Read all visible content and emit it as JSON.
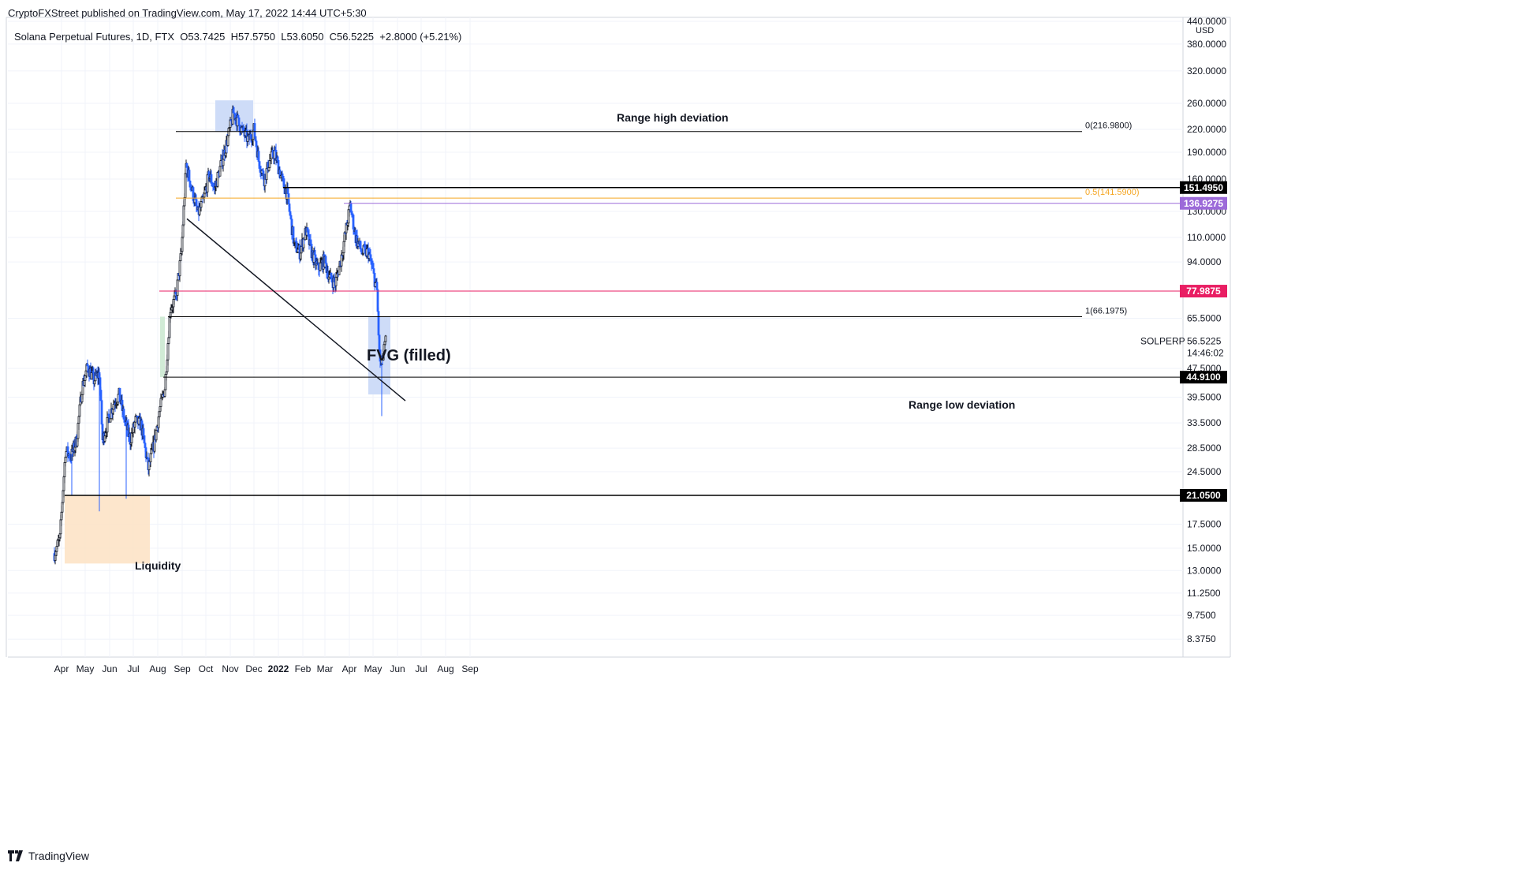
{
  "header": {
    "published": "CryptoFXStreet published on TradingView.com, May 17, 2022 14:44 UTC+5:30",
    "symbol": "Solana Perpetual Futures, 1D, FTX",
    "ohlc": "O53.7425  H57.5750  L53.6050  C56.5225  +2.8000 (+5.21%)"
  },
  "footer": {
    "brand": "TradingView",
    "logo_icon": "tradingview-logo-icon"
  },
  "chart_data": {
    "type": "candlestick",
    "scale": "log",
    "currency": "USD",
    "grid": true,
    "x_ticks": [
      "Apr",
      "May",
      "Jun",
      "Jul",
      "Aug",
      "Sep",
      "Oct",
      "Nov",
      "Dec",
      "2022",
      "Feb",
      "Mar",
      "Apr",
      "May",
      "Jun",
      "Jul",
      "Aug",
      "Sep"
    ],
    "y_ticks": [
      "440.0000",
      "380.0000",
      "320.0000",
      "260.0000",
      "220.0000",
      "190.0000",
      "160.0000",
      "130.0000",
      "110.0000",
      "94.0000",
      "65.5000",
      "47.5000",
      "39.5000",
      "33.5000",
      "28.5000",
      "24.5000",
      "17.5000",
      "15.0000",
      "13.0000",
      "11.2500",
      "9.7500",
      "8.3750"
    ],
    "ylim": [
      7.5,
      450
    ],
    "anchors": [
      [
        "2021-03-23",
        14.5
      ],
      [
        "2021-03-30",
        16
      ],
      [
        "2021-04-06",
        28
      ],
      [
        "2021-04-13",
        27
      ],
      [
        "2021-04-20",
        30
      ],
      [
        "2021-04-27",
        42
      ],
      [
        "2021-05-04",
        48
      ],
      [
        "2021-05-12",
        44
      ],
      [
        "2021-05-19",
        46
      ],
      [
        "2021-05-23",
        30
      ],
      [
        "2021-05-30",
        34
      ],
      [
        "2021-06-06",
        38
      ],
      [
        "2021-06-13",
        40
      ],
      [
        "2021-06-20",
        34
      ],
      [
        "2021-06-27",
        30
      ],
      [
        "2021-07-04",
        34
      ],
      [
        "2021-07-11",
        33
      ],
      [
        "2021-07-20",
        25
      ],
      [
        "2021-07-27",
        29
      ],
      [
        "2021-08-03",
        36
      ],
      [
        "2021-08-10",
        42
      ],
      [
        "2021-08-17",
        70
      ],
      [
        "2021-08-24",
        75
      ],
      [
        "2021-08-31",
        100
      ],
      [
        "2021-09-06",
        175
      ],
      [
        "2021-09-13",
        150
      ],
      [
        "2021-09-21",
        128
      ],
      [
        "2021-09-28",
        140
      ],
      [
        "2021-10-05",
        165
      ],
      [
        "2021-10-12",
        150
      ],
      [
        "2021-10-20",
        175
      ],
      [
        "2021-10-27",
        200
      ],
      [
        "2021-11-05",
        245
      ],
      [
        "2021-11-15",
        220
      ],
      [
        "2021-11-24",
        205
      ],
      [
        "2021-12-01",
        220
      ],
      [
        "2021-12-07",
        180
      ],
      [
        "2021-12-14",
        160
      ],
      [
        "2021-12-21",
        180
      ],
      [
        "2021-12-27",
        190
      ],
      [
        "2022-01-05",
        160
      ],
      [
        "2022-01-12",
        145
      ],
      [
        "2022-01-21",
        105
      ],
      [
        "2022-01-28",
        100
      ],
      [
        "2022-02-05",
        115
      ],
      [
        "2022-02-12",
        100
      ],
      [
        "2022-02-20",
        90
      ],
      [
        "2022-02-28",
        95
      ],
      [
        "2022-03-07",
        85
      ],
      [
        "2022-03-14",
        82
      ],
      [
        "2022-03-21",
        95
      ],
      [
        "2022-03-29",
        120
      ],
      [
        "2022-04-02",
        135
      ],
      [
        "2022-04-09",
        110
      ],
      [
        "2022-04-17",
        100
      ],
      [
        "2022-04-25",
        100
      ],
      [
        "2022-05-01",
        88
      ],
      [
        "2022-05-06",
        78
      ],
      [
        "2022-05-09",
        52
      ],
      [
        "2022-05-11",
        48
      ],
      [
        "2022-05-14",
        52
      ],
      [
        "2022-05-17",
        56.5225
      ]
    ],
    "horizontal_levels": [
      {
        "value": 216.98,
        "label": "0(216.9800)",
        "color": "#000000"
      },
      {
        "value": 141.59,
        "label": "0.5(141.5900)",
        "color": "#f5a623"
      },
      {
        "value": 151.495,
        "badge": "151.4950",
        "color": "#000000"
      },
      {
        "value": 136.9275,
        "badge": "136.9275",
        "color": "#9c6ad9"
      },
      {
        "value": 77.9875,
        "badge": "77.9875",
        "color": "#e91e63"
      },
      {
        "value": 66.1975,
        "label": "1(66.1975)",
        "color": "#000000"
      },
      {
        "value": 44.91,
        "badge": "44.9100",
        "color": "#000000"
      },
      {
        "value": 21.05,
        "badge": "21.0500",
        "color": "#000000"
      }
    ],
    "annotations": {
      "range_high": "Range high deviation",
      "range_low": "Range low deviation",
      "fvg": "FVG (filled)",
      "liquidity": "Liquidity"
    },
    "price_label": {
      "symbol": "SOLPERP",
      "price": "56.5225",
      "countdown": "14:46:02"
    }
  }
}
